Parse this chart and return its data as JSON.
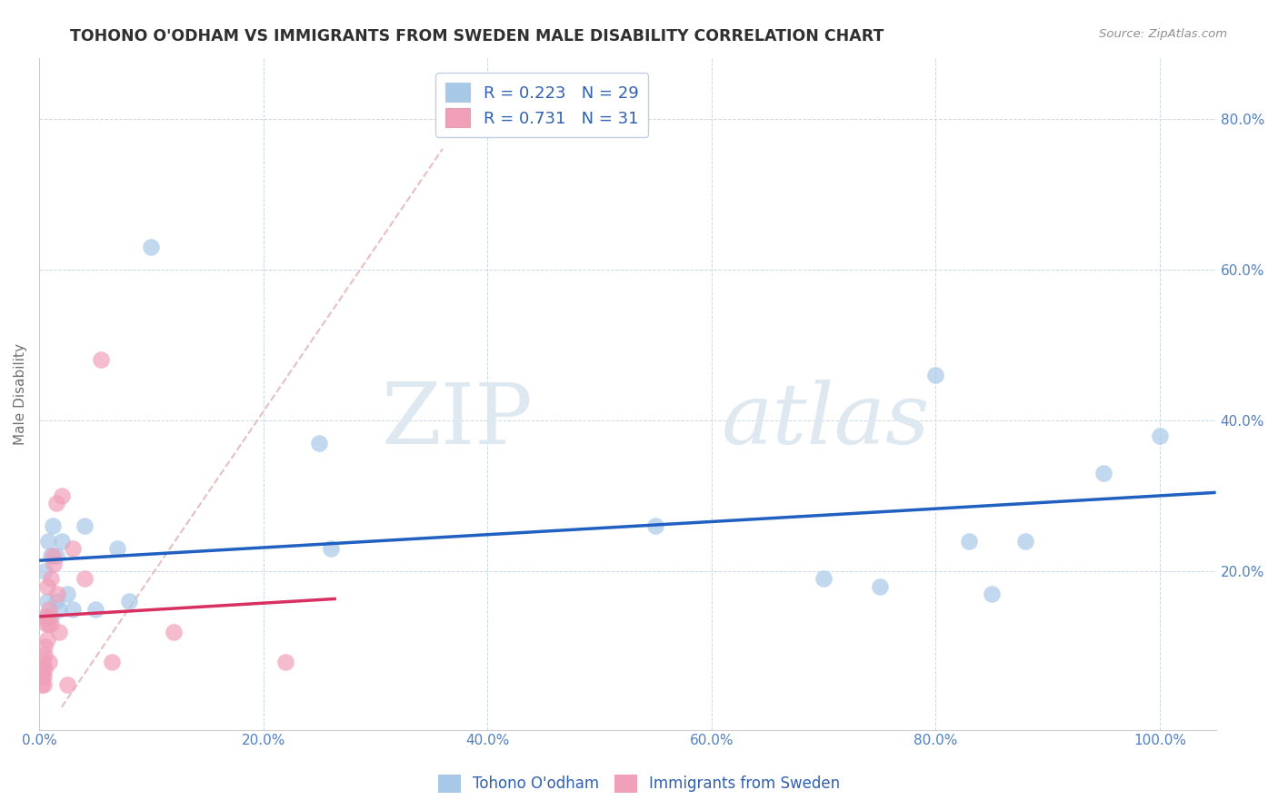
{
  "title": "TOHONO O'ODHAM VS IMMIGRANTS FROM SWEDEN MALE DISABILITY CORRELATION CHART",
  "source": "Source: ZipAtlas.com",
  "ylabel": "Male Disability",
  "r_blue": 0.223,
  "n_blue": 29,
  "r_pink": 0.731,
  "n_pink": 31,
  "blue_color": "#a8c8e8",
  "pink_color": "#f0a0b8",
  "blue_line_color": "#2060c0",
  "pink_line_color": "#d83060",
  "ref_line_color": "#d0c8c8",
  "title_color": "#303030",
  "axis_label_color": "#5080c0",
  "legend_text_color": "#3060b0",
  "blue_scatter_x": [
    0.005,
    0.005,
    0.007,
    0.008,
    0.01,
    0.01,
    0.012,
    0.015,
    0.015,
    0.018,
    0.02,
    0.025,
    0.03,
    0.04,
    0.05,
    0.07,
    0.08,
    0.1,
    0.25,
    0.26,
    0.55,
    0.7,
    0.75,
    0.8,
    0.83,
    0.85,
    0.88,
    0.95,
    1.0
  ],
  "blue_scatter_y": [
    0.14,
    0.2,
    0.16,
    0.24,
    0.22,
    0.14,
    0.26,
    0.22,
    0.16,
    0.15,
    0.24,
    0.17,
    0.15,
    0.26,
    0.15,
    0.23,
    0.16,
    0.63,
    0.37,
    0.23,
    0.26,
    0.19,
    0.18,
    0.46,
    0.24,
    0.17,
    0.24,
    0.33,
    0.38
  ],
  "pink_scatter_x": [
    0.002,
    0.002,
    0.003,
    0.003,
    0.004,
    0.004,
    0.005,
    0.005,
    0.005,
    0.006,
    0.006,
    0.007,
    0.007,
    0.008,
    0.009,
    0.009,
    0.01,
    0.01,
    0.012,
    0.013,
    0.015,
    0.016,
    0.018,
    0.02,
    0.025,
    0.03,
    0.04,
    0.055,
    0.065,
    0.12,
    0.22
  ],
  "pink_scatter_y": [
    0.05,
    0.06,
    0.07,
    0.08,
    0.05,
    0.06,
    0.07,
    0.09,
    0.1,
    0.13,
    0.14,
    0.11,
    0.18,
    0.13,
    0.08,
    0.15,
    0.13,
    0.19,
    0.22,
    0.21,
    0.29,
    0.17,
    0.12,
    0.3,
    0.05,
    0.23,
    0.19,
    0.48,
    0.08,
    0.12,
    0.08
  ],
  "xlim": [
    0.0,
    1.05
  ],
  "ylim": [
    -0.01,
    0.88
  ],
  "xticks": [
    0.0,
    0.2,
    0.4,
    0.6,
    0.8,
    1.0
  ],
  "yticks": [
    0.2,
    0.4,
    0.6,
    0.8
  ]
}
